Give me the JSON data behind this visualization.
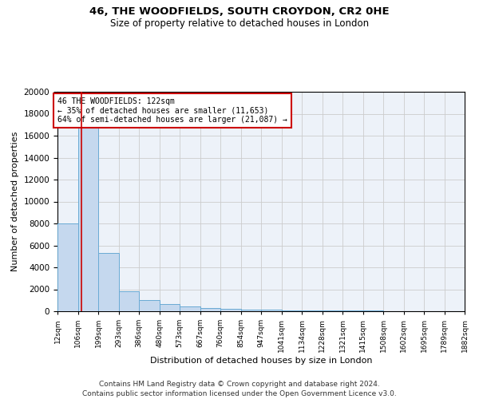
{
  "title1": "46, THE WOODFIELDS, SOUTH CROYDON, CR2 0HE",
  "title2": "Size of property relative to detached houses in London",
  "xlabel": "Distribution of detached houses by size in London",
  "ylabel": "Number of detached properties",
  "bar_edges": [
    12,
    106,
    199,
    293,
    386,
    480,
    573,
    667,
    760,
    854,
    947,
    1041,
    1134,
    1228,
    1321,
    1415,
    1508,
    1602,
    1695,
    1789,
    1882
  ],
  "bar_heights": [
    8000,
    17000,
    5300,
    1800,
    1000,
    650,
    420,
    280,
    200,
    150,
    110,
    90,
    75,
    60,
    50,
    40,
    30,
    25,
    20,
    18,
    15
  ],
  "bar_color": "#c5d8ee",
  "bar_edge_color": "#6aaad4",
  "property_sqm": 122,
  "red_line_color": "#cc0000",
  "annotation_text": "46 THE WOODFIELDS: 122sqm\n← 35% of detached houses are smaller (11,653)\n64% of semi-detached houses are larger (21,087) →",
  "annotation_box_color": "#cc0000",
  "grid_color": "#cccccc",
  "background_color": "#edf2f9",
  "ylim": [
    0,
    20000
  ],
  "yticks": [
    0,
    2000,
    4000,
    6000,
    8000,
    10000,
    12000,
    14000,
    16000,
    18000,
    20000
  ],
  "tick_labels": [
    "12sqm",
    "106sqm",
    "199sqm",
    "293sqm",
    "386sqm",
    "480sqm",
    "573sqm",
    "667sqm",
    "760sqm",
    "854sqm",
    "947sqm",
    "1041sqm",
    "1134sqm",
    "1228sqm",
    "1321sqm",
    "1415sqm",
    "1508sqm",
    "1602sqm",
    "1695sqm",
    "1789sqm",
    "1882sqm"
  ],
  "footer_line1": "Contains HM Land Registry data © Crown copyright and database right 2024.",
  "footer_line2": "Contains public sector information licensed under the Open Government Licence v3.0."
}
